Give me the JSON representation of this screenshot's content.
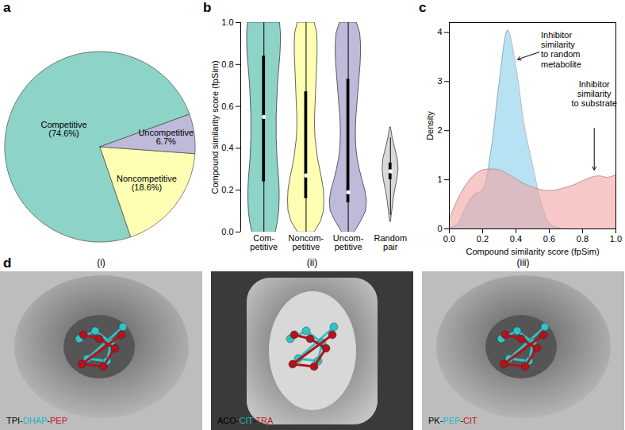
{
  "chart_data": [
    {
      "panel_label": "a",
      "type": "pie",
      "categories": [
        "Competitive",
        "Noncompetitive",
        "Uncompetitive"
      ],
      "values": [
        74.6,
        18.6,
        6.7
      ],
      "value_labels": [
        "(74.6%)",
        "(18.6%)",
        "6.7%"
      ],
      "colors": [
        "#8dd3c7",
        "#ffffb3",
        "#bebada"
      ],
      "data_labels": true
    },
    {
      "panel_label": "b",
      "type": "violin",
      "categories": [
        "Com-\npetitive",
        "Noncom-\npetitive",
        "Uncom-\npetitive",
        "Random\npair"
      ],
      "colors": [
        "#8dd3c7",
        "#ffffb3",
        "#bebada",
        "#d9d9d9"
      ],
      "ylabel": "Compound similarity score (fpSim)",
      "ylim": [
        0,
        1
      ],
      "yticks": [
        {
          "value": 0,
          "label": "0.0"
        },
        0.2,
        0.4,
        0.6,
        0.8,
        {
          "value": 1,
          "label": "1.0"
        }
      ],
      "density_y": [
        0,
        0.05,
        0.1,
        0.15,
        0.2,
        0.25,
        0.3,
        0.35,
        0.4,
        0.45,
        0.5,
        0.55,
        0.6,
        0.65,
        0.7,
        0.75,
        0.8,
        0.85,
        0.9,
        0.95,
        1
      ],
      "density_width": [
        [
          0.28,
          0.33,
          0.36,
          0.37,
          0.37,
          0.36,
          0.34,
          0.32,
          0.31,
          0.3,
          0.3,
          0.3,
          0.31,
          0.32,
          0.33,
          0.35,
          0.37,
          0.39,
          0.4,
          0.4,
          0.38
        ],
        [
          0.2,
          0.35,
          0.42,
          0.43,
          0.42,
          0.38,
          0.33,
          0.28,
          0.25,
          0.22,
          0.21,
          0.21,
          0.22,
          0.23,
          0.24,
          0.25,
          0.26,
          0.27,
          0.27,
          0.26,
          0.2
        ],
        [
          0.15,
          0.3,
          0.42,
          0.44,
          0.4,
          0.33,
          0.27,
          0.22,
          0.19,
          0.18,
          0.18,
          0.19,
          0.21,
          0.23,
          0.25,
          0.27,
          0.29,
          0.3,
          0.3,
          0.28,
          0.2
        ],
        [
          null,
          0.01,
          0.04,
          0.07,
          0.11,
          0.16,
          0.19,
          0.17,
          0.11,
          0.05,
          0.01,
          null,
          null,
          null,
          null,
          null,
          null,
          null,
          null,
          null,
          null
        ]
      ],
      "min": [
        0,
        0,
        0,
        0.08
      ],
      "q1": [
        0.24,
        0.16,
        0.14,
        0.25
      ],
      "median": [
        0.55,
        0.27,
        0.19,
        0.29
      ],
      "q3": [
        0.84,
        0.67,
        0.73,
        0.33
      ],
      "max": [
        1,
        1,
        1,
        0.45
      ]
    },
    {
      "panel_label": "c",
      "type": "area",
      "xlabel": "Compound similarity score (fpSim)",
      "ylabel": "Density",
      "x": [
        0,
        0.05,
        0.1,
        0.15,
        0.2,
        0.25,
        0.3,
        0.35,
        0.4,
        0.45,
        0.5,
        0.55,
        0.6,
        0.65,
        0.7,
        0.75,
        0.8,
        0.85,
        0.9,
        0.95,
        1
      ],
      "series": [
        {
          "name": "Inhibitor\nsimilarity\nto random\nmetabolite",
          "color": "#87ceeb",
          "values": [
            0.02,
            0.1,
            0.45,
            0.7,
            0.8,
            1.6,
            3.0,
            4.05,
            3.3,
            2.1,
            1.3,
            0.55,
            0.12,
            0.02,
            0,
            0,
            0,
            0,
            0,
            0,
            0
          ]
        },
        {
          "name": "Inhibitor\nsimilarity\nto substrate",
          "color": "#f4a3a3",
          "values": [
            0.2,
            0.6,
            0.9,
            1.1,
            1.2,
            1.22,
            1.2,
            1.12,
            1.02,
            0.92,
            0.85,
            0.8,
            0.78,
            0.8,
            0.85,
            0.9,
            0.98,
            1.05,
            1.08,
            1.05,
            1.1
          ]
        }
      ],
      "xlim": [
        0,
        1
      ],
      "xticks": [
        {
          "value": 0,
          "label": "0.0"
        },
        0.2,
        0.4,
        0.6,
        0.8,
        {
          "value": 1,
          "label": "1.0"
        }
      ],
      "ylim": [
        0,
        4.2
      ],
      "yticks": [
        0,
        1,
        2,
        3,
        4
      ]
    }
  ],
  "diagram": {
    "panel_label": "d",
    "items": [
      {
        "label": "(i)",
        "caption": [
          {
            "text": "TPI-",
            "color": "#000000"
          },
          {
            "text": "DHAP",
            "color": "#20b8c0"
          },
          {
            "text": "-",
            "color": "#000000"
          },
          {
            "text": "PEP",
            "color": "#c0141e"
          }
        ]
      },
      {
        "label": "(ii)",
        "caption": [
          {
            "text": "ACO-",
            "color": "#000000"
          },
          {
            "text": "CIT",
            "color": "#20b8c0"
          },
          {
            "text": "-",
            "color": "#000000"
          },
          {
            "text": "TRA",
            "color": "#c0141e"
          }
        ]
      },
      {
        "label": "(iii)",
        "caption": [
          {
            "text": "PK-",
            "color": "#000000"
          },
          {
            "text": "PEP",
            "color": "#20b8c0"
          },
          {
            "text": "-",
            "color": "#000000"
          },
          {
            "text": "CIT",
            "color": "#c0141e"
          }
        ]
      }
    ]
  }
}
